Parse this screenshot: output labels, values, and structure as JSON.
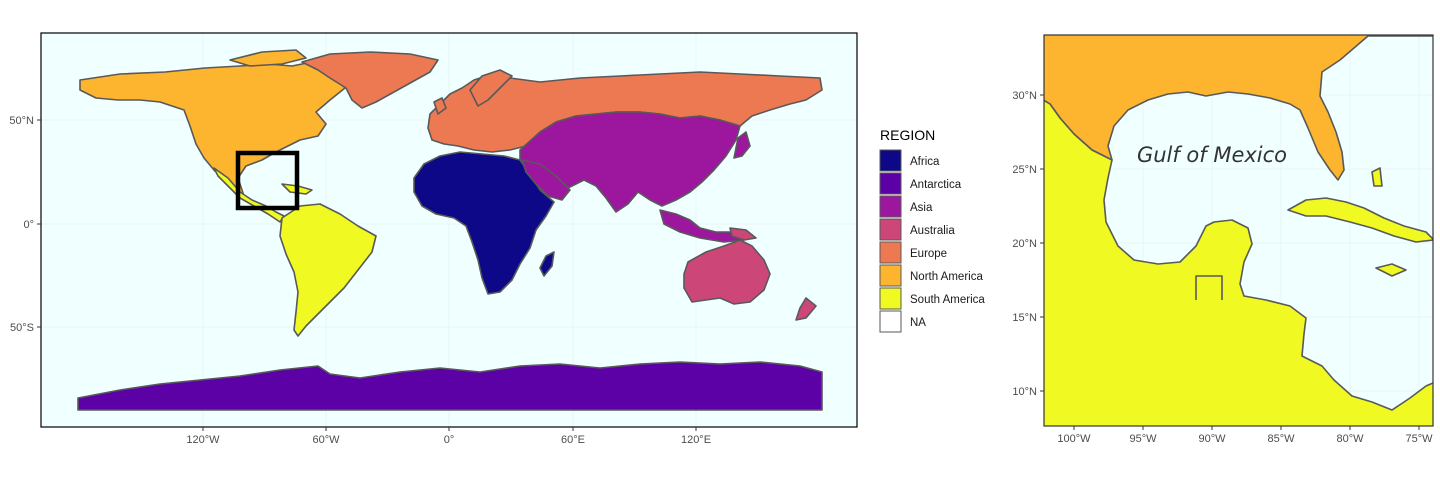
{
  "colors": {
    "ocean": "#f0ffff",
    "border": "#595959",
    "grid": "#e4eeee",
    "inset_box": "#000000"
  },
  "main_map": {
    "x_ticks": [
      "120°W",
      "60°W",
      "0°",
      "60°E",
      "120°E"
    ],
    "y_ticks": [
      "50°N",
      "0°",
      "50°S"
    ]
  },
  "legend": {
    "title": "REGION",
    "items": [
      {
        "label": "Africa",
        "color": "#0d0887"
      },
      {
        "label": "Antarctica",
        "color": "#5c01a6"
      },
      {
        "label": "Asia",
        "color": "#9c179e"
      },
      {
        "label": "Australia",
        "color": "#cc4778"
      },
      {
        "label": "Europe",
        "color": "#ed7953"
      },
      {
        "label": "North America",
        "color": "#fdb42f"
      },
      {
        "label": "South America",
        "color": "#f0f921"
      },
      {
        "label": "NA",
        "color": "#ffffff"
      }
    ]
  },
  "inset_map": {
    "label": "Gulf of Mexico",
    "x_ticks": [
      "100°W",
      "95°W",
      "90°W",
      "85°W",
      "80°W",
      "75°W"
    ],
    "y_ticks": [
      "30°N",
      "25°N",
      "20°N",
      "15°N",
      "10°N"
    ]
  }
}
